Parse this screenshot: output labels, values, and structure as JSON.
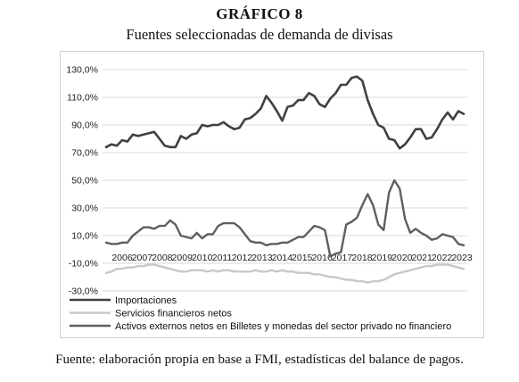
{
  "header": {
    "title": "GRÁFICO 8",
    "subtitle": "Fuentes seleccionadas de demanda de divisas"
  },
  "footer": {
    "source": "Fuente: elaboración propia en base a FMI, estadísticas del balance de pagos."
  },
  "colors": {
    "importaciones": "#404040",
    "servicios": "#c8c8c8",
    "activos": "#5f5f5f",
    "grid": "#d9d9d9",
    "frame": "#cfcfcf"
  },
  "chart_data": {
    "type": "line",
    "title": "",
    "xlabel": "",
    "ylabel": "",
    "ylim": [
      -30,
      130
    ],
    "yticks": [
      -30,
      -10,
      10,
      30,
      50,
      70,
      90,
      110,
      130
    ],
    "ytick_labels": [
      "-30,0%",
      "-10,0%",
      "10,0%",
      "30,0%",
      "50,0%",
      "70,0%",
      "90,0%",
      "110,0%",
      "130,0%"
    ],
    "xtick_labels": [
      "2006",
      "2007",
      "2008",
      "2009",
      "2010",
      "2011",
      "2012",
      "2013",
      "2014",
      "2015",
      "2016",
      "2017",
      "2018",
      "2019",
      "2020",
      "2021",
      "2022",
      "2023"
    ],
    "x_start": "2006-Q1",
    "frequency": "quarterly",
    "grid": true,
    "legend_position": "bottom",
    "series": [
      {
        "name": "Importaciones",
        "color": "#404040",
        "values": [
          74,
          76,
          75,
          79,
          78,
          83,
          82,
          83,
          84,
          85,
          80,
          75,
          74,
          74,
          82,
          80,
          83,
          84,
          90,
          89,
          90,
          90,
          92,
          89,
          87,
          88,
          94,
          95,
          98,
          102,
          111,
          106,
          100,
          93,
          103,
          104,
          108,
          108,
          113,
          111,
          105,
          103,
          109,
          113,
          119,
          119,
          124,
          125,
          122,
          108,
          98,
          90,
          88,
          80,
          79,
          73,
          76,
          81,
          87,
          87,
          80,
          81,
          87,
          94,
          99,
          94,
          100,
          98
        ]
      },
      {
        "name": "Servicios financieros netos",
        "color": "#c8c8c8",
        "values": [
          -17,
          -16,
          -14,
          -14,
          -13,
          -13,
          -12,
          -12,
          -11,
          -11,
          -12,
          -13,
          -14,
          -15,
          -16,
          -16,
          -15,
          -15,
          -15,
          -16,
          -15,
          -16,
          -15,
          -15,
          -16,
          -16,
          -16,
          -16,
          -15,
          -16,
          -16,
          -15,
          -16,
          -15,
          -16,
          -16,
          -17,
          -17,
          -17,
          -18,
          -18,
          -19,
          -20,
          -20,
          -21,
          -22,
          -22,
          -23,
          -23,
          -24,
          -23,
          -23,
          -22,
          -20,
          -18,
          -17,
          -16,
          -15,
          -14,
          -13,
          -12,
          -12,
          -11,
          -11,
          -11,
          -12,
          -13,
          -14
        ]
      },
      {
        "name": "Activos externos netos en Billetes y monedas del sector privado no financiero",
        "color": "#5f5f5f",
        "values": [
          5,
          4,
          4,
          5,
          5,
          10,
          13,
          16,
          16,
          15,
          17,
          17,
          21,
          18,
          10,
          9,
          8,
          12,
          8,
          11,
          11,
          17,
          19,
          19,
          19,
          16,
          11,
          6,
          5,
          5,
          3,
          4,
          4,
          5,
          5,
          7,
          9,
          9,
          13,
          17,
          16,
          14,
          -5,
          -3,
          -2,
          18,
          20,
          23,
          32,
          40,
          32,
          18,
          14,
          41,
          50,
          44,
          22,
          12,
          15,
          12,
          10,
          7,
          8,
          11,
          10,
          9,
          4,
          3
        ]
      }
    ]
  }
}
